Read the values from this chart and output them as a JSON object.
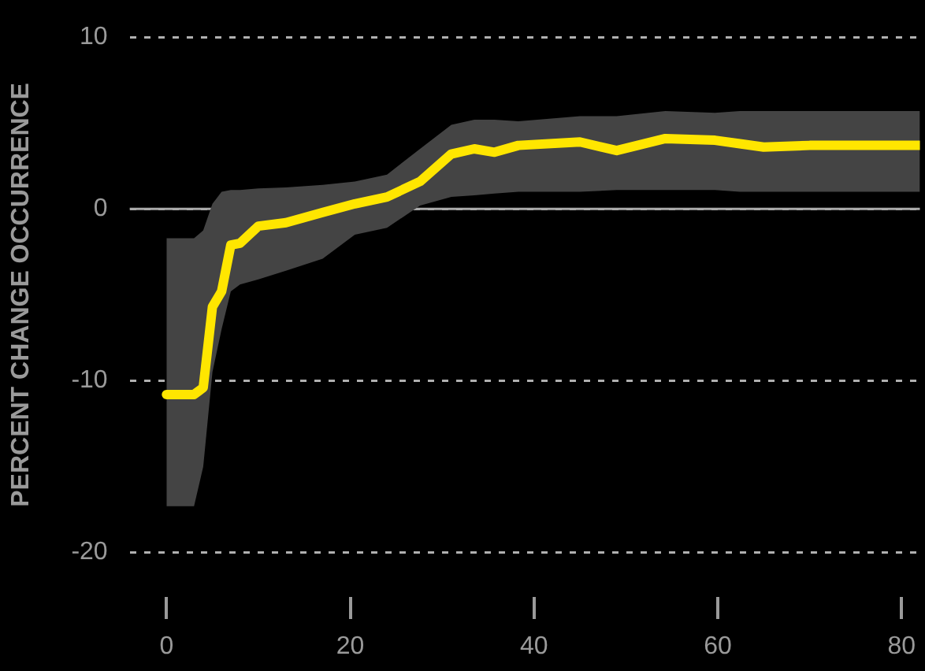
{
  "chart_data": {
    "type": "line",
    "ylabel": "PERCENT CHANGE OCCURRENCE",
    "x": [
      0,
      3,
      4,
      5,
      6,
      7,
      8,
      10,
      13,
      17,
      20.5,
      24,
      27.6,
      31,
      33.5,
      35.7,
      38.3,
      45,
      49,
      54.3,
      59.7,
      62.4,
      65,
      70,
      82
    ],
    "series": [
      {
        "color": "#ffe600",
        "values": [
          -10.8,
          -10.8,
          -10.4,
          -5.7,
          -4.8,
          -2.1,
          -2.0,
          -1.0,
          -0.8,
          -0.2,
          0.3,
          0.7,
          1.6,
          3.2,
          3.5,
          3.3,
          3.7,
          3.9,
          3.4,
          4.1,
          4.0,
          3.8,
          3.6,
          3.7,
          3.7
        ],
        "lower": [
          -17.3,
          -17.3,
          -15,
          -9.5,
          -7,
          -4.8,
          -4.4,
          -4.1,
          -3.6,
          -2.9,
          -1.5,
          -1.1,
          0.2,
          0.7,
          0.8,
          0.9,
          1.0,
          1.0,
          1.1,
          1.1,
          1.1,
          1.0,
          1.0,
          1.0,
          1.0
        ],
        "upper": [
          -1.7,
          -1.7,
          -1.25,
          0.3,
          1.0,
          1.1,
          1.1,
          1.2,
          1.25,
          1.4,
          1.6,
          2.0,
          3.5,
          4.9,
          5.2,
          5.2,
          5.1,
          5.4,
          5.4,
          5.7,
          5.6,
          5.7,
          5.7,
          5.7,
          5.7
        ]
      }
    ],
    "xlim": [
      -4,
      82
    ],
    "xticks": [
      0,
      20,
      40,
      60,
      80
    ],
    "ylim": [
      -20,
      10
    ],
    "yticks": [
      -20,
      -10,
      0,
      10
    ],
    "ref_lines": [
      {
        "axis": "y",
        "value": 0,
        "color": "#aaaaaa"
      }
    ],
    "grid": "y",
    "legend": false,
    "marker": "none",
    "line_style": "solid"
  }
}
